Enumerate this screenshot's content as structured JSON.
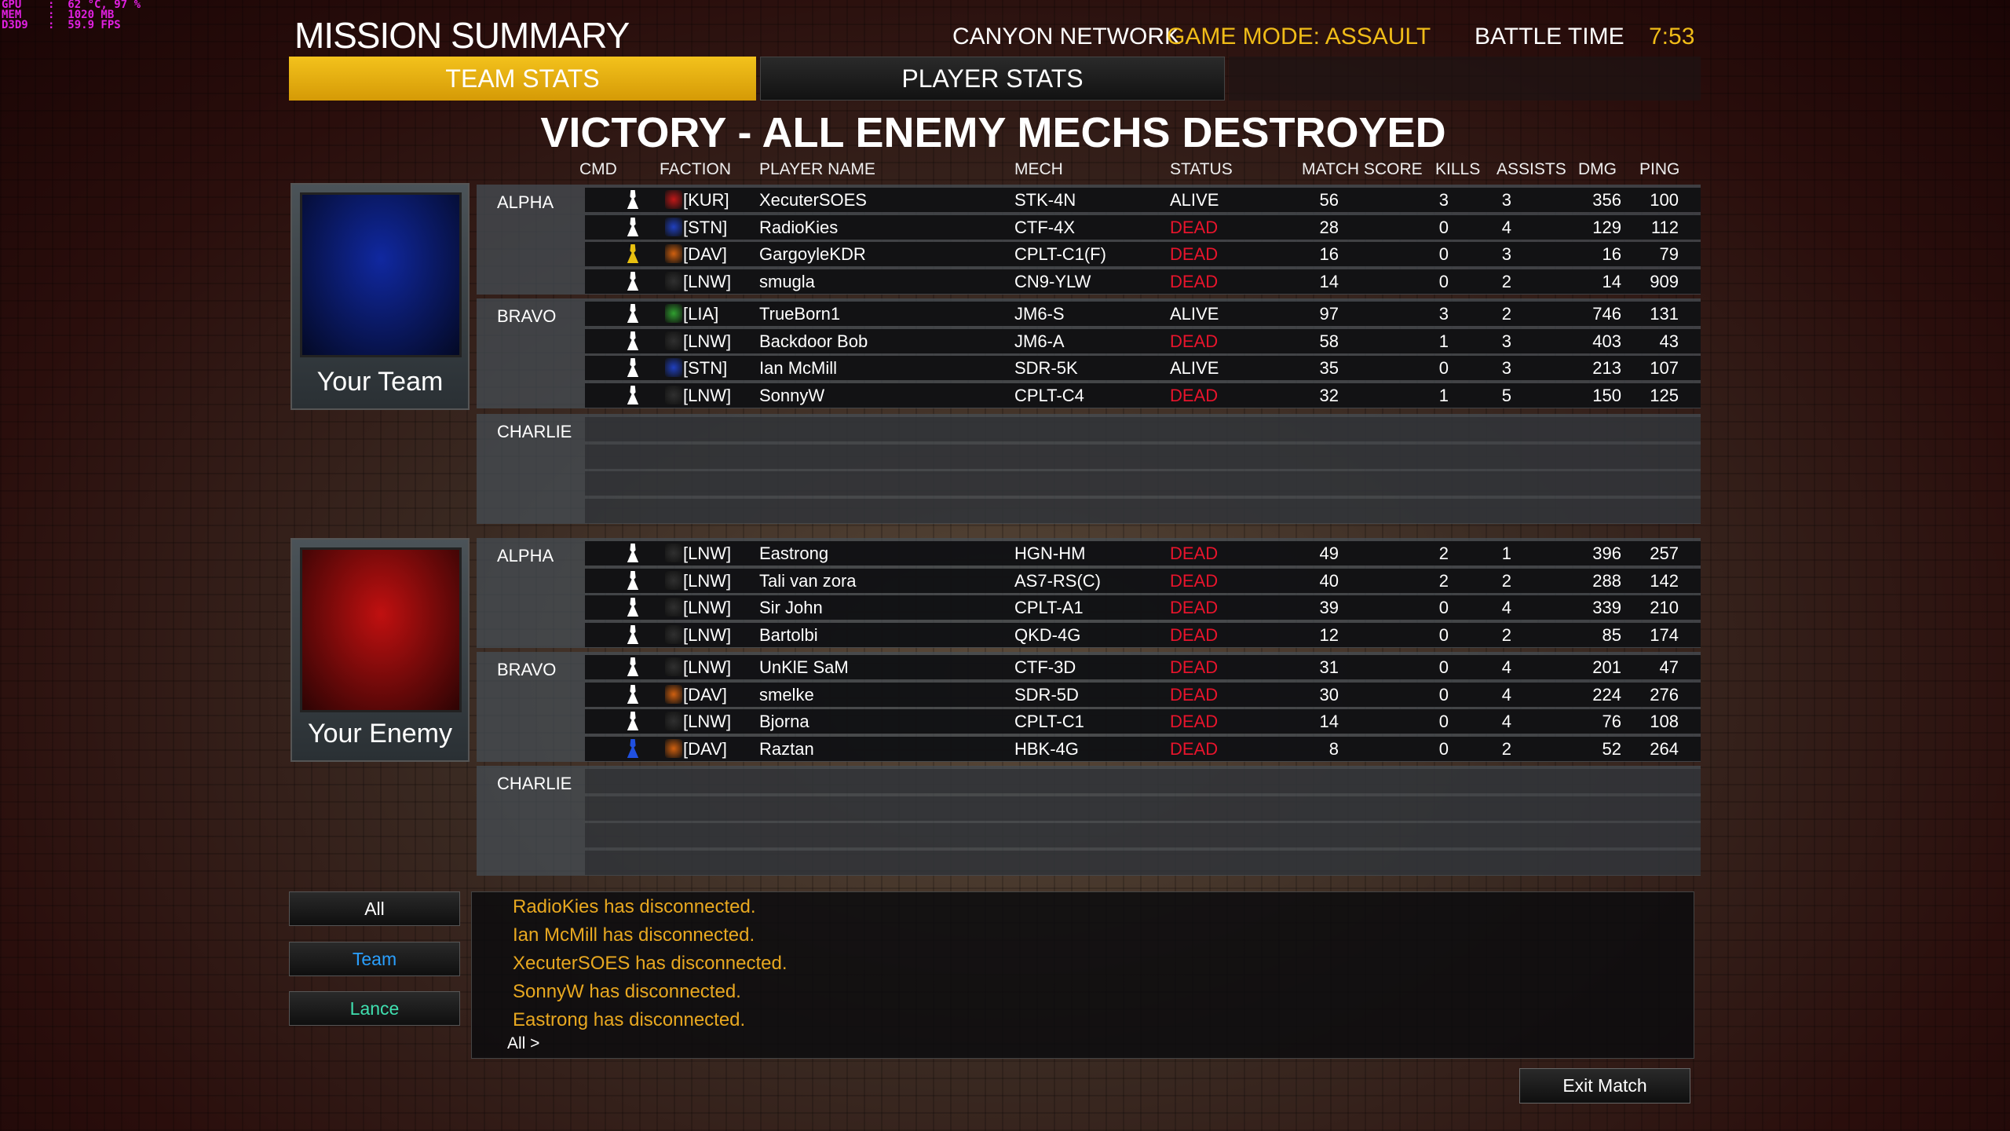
{
  "perf_overlay": [
    "GPU    :  62 °C, 97 %",
    "MEM    :  1020 MB",
    "D3D9   :  59.9 FPS"
  ],
  "header": {
    "title": "MISSION SUMMARY",
    "map": "CANYON NETWORK",
    "game_mode": "GAME MODE: ASSAULT",
    "battle_time_label": "BATTLE TIME",
    "battle_time": "7:53"
  },
  "tabs": {
    "team_stats": "TEAM STATS",
    "player_stats": "PLAYER STATS"
  },
  "result": "VICTORY - ALL ENEMY MECHS DESTROYED",
  "columns": {
    "cmd": "CMD",
    "faction": "FACTION",
    "player": "PLAYER NAME",
    "mech": "MECH",
    "status": "STATUS",
    "score": "MATCH SCORE",
    "kills": "KILLS",
    "assists": "ASSISTS",
    "dmg": "DMG",
    "ping": "PING"
  },
  "colors": {
    "accent": "#f0bc18",
    "dead": "#e8142c",
    "chat": "#e8a820",
    "your_team": "#1028a0",
    "enemy": "#c01010"
  },
  "teams": [
    {
      "label": "Your Team",
      "flag_color": "#1028a0",
      "lances": [
        {
          "name": "ALPHA",
          "players": [
            {
              "cmd": "player-icon",
              "faction": "KUR",
              "tag": "[KUR]",
              "name": "XecuterSOES",
              "mech": "STK-4N",
              "status": "ALIVE",
              "score": "56",
              "kills": "3",
              "assists": "3",
              "dmg": "356",
              "ping": "100"
            },
            {
              "cmd": "player-icon",
              "faction": "STN",
              "tag": "[STN]",
              "name": "RadioKies",
              "mech": "CTF-4X",
              "status": "DEAD",
              "score": "28",
              "kills": "0",
              "assists": "4",
              "dmg": "129",
              "ping": "112"
            },
            {
              "cmd": "commander-icon",
              "faction": "DAV",
              "tag": "[DAV]",
              "name": "GargoyleKDR",
              "mech": "CPLT-C1(F)",
              "status": "DEAD",
              "score": "16",
              "kills": "0",
              "assists": "3",
              "dmg": "16",
              "ping": "79"
            },
            {
              "cmd": "player-icon",
              "faction": "LNW",
              "tag": "[LNW]",
              "name": "smugla",
              "mech": "CN9-YLW",
              "status": "DEAD",
              "score": "14",
              "kills": "0",
              "assists": "2",
              "dmg": "14",
              "ping": "909"
            }
          ]
        },
        {
          "name": "BRAVO",
          "players": [
            {
              "cmd": "player-icon",
              "faction": "LIA",
              "tag": "[LIA]",
              "name": "TrueBorn1",
              "mech": "JM6-S",
              "status": "ALIVE",
              "score": "97",
              "kills": "3",
              "assists": "2",
              "dmg": "746",
              "ping": "131"
            },
            {
              "cmd": "player-icon",
              "faction": "LNW",
              "tag": "[LNW]",
              "name": "Backdoor Bob",
              "mech": "JM6-A",
              "status": "DEAD",
              "score": "58",
              "kills": "1",
              "assists": "3",
              "dmg": "403",
              "ping": "43"
            },
            {
              "cmd": "player-icon",
              "faction": "STN",
              "tag": "[STN]",
              "name": "Ian McMill",
              "mech": "SDR-5K",
              "status": "ALIVE",
              "score": "35",
              "kills": "0",
              "assists": "3",
              "dmg": "213",
              "ping": "107"
            },
            {
              "cmd": "player-icon",
              "faction": "LNW",
              "tag": "[LNW]",
              "name": "SonnyW",
              "mech": "CPLT-C4",
              "status": "DEAD",
              "score": "32",
              "kills": "1",
              "assists": "5",
              "dmg": "150",
              "ping": "125"
            }
          ]
        },
        {
          "name": "CHARLIE",
          "players": []
        }
      ]
    },
    {
      "label": "Your Enemy",
      "flag_color": "#c01010",
      "lances": [
        {
          "name": "ALPHA",
          "players": [
            {
              "cmd": "player-icon",
              "faction": "LNW",
              "tag": "[LNW]",
              "name": "Eastrong",
              "mech": "HGN-HM",
              "status": "DEAD",
              "score": "49",
              "kills": "2",
              "assists": "1",
              "dmg": "396",
              "ping": "257"
            },
            {
              "cmd": "player-icon",
              "faction": "LNW",
              "tag": "[LNW]",
              "name": "Tali van zora",
              "mech": "AS7-RS(C)",
              "status": "DEAD",
              "score": "40",
              "kills": "2",
              "assists": "2",
              "dmg": "288",
              "ping": "142"
            },
            {
              "cmd": "player-icon",
              "faction": "LNW",
              "tag": "[LNW]",
              "name": "Sir John",
              "mech": "CPLT-A1",
              "status": "DEAD",
              "score": "39",
              "kills": "0",
              "assists": "4",
              "dmg": "339",
              "ping": "210"
            },
            {
              "cmd": "player-icon",
              "faction": "LNW",
              "tag": "[LNW]",
              "name": "Bartolbi",
              "mech": "QKD-4G",
              "status": "DEAD",
              "score": "12",
              "kills": "0",
              "assists": "2",
              "dmg": "85",
              "ping": "174"
            }
          ]
        },
        {
          "name": "BRAVO",
          "players": [
            {
              "cmd": "player-icon",
              "faction": "LNW",
              "tag": "[LNW]",
              "name": "UnKlE SaM",
              "mech": "CTF-3D",
              "status": "DEAD",
              "score": "31",
              "kills": "0",
              "assists": "4",
              "dmg": "201",
              "ping": "47"
            },
            {
              "cmd": "player-icon",
              "faction": "DAV",
              "tag": "[DAV]",
              "name": "smelke",
              "mech": "SDR-5D",
              "status": "DEAD",
              "score": "30",
              "kills": "0",
              "assists": "4",
              "dmg": "224",
              "ping": "276"
            },
            {
              "cmd": "player-icon",
              "faction": "LNW",
              "tag": "[LNW]",
              "name": "Bjorna",
              "mech": "CPLT-C1",
              "status": "DEAD",
              "score": "14",
              "kills": "0",
              "assists": "4",
              "dmg": "76",
              "ping": "108"
            },
            {
              "cmd": "commander-blue-icon",
              "faction": "DAV",
              "tag": "[DAV]",
              "name": "Raztan",
              "mech": "HBK-4G",
              "status": "DEAD",
              "score": "8",
              "kills": "0",
              "assists": "2",
              "dmg": "52",
              "ping": "264"
            }
          ]
        },
        {
          "name": "CHARLIE",
          "players": []
        }
      ]
    }
  ],
  "faction_colors": {
    "KUR": "#c01818",
    "STN": "#2040c0",
    "DAV": "#d06010",
    "LNW": "#303030",
    "LIA": "#30a030"
  },
  "chat": {
    "filters": [
      "All",
      "Team",
      "Lance"
    ],
    "filter_colors": [
      "#ffffff",
      "#2aa0ff",
      "#40e0b0"
    ],
    "messages": [
      "RadioKies has disconnected.",
      "Ian McMill has disconnected.",
      "XecuterSOES has disconnected.",
      "SonnyW has disconnected.",
      "Eastrong has disconnected."
    ],
    "prompt": "All >"
  },
  "exit_button": "Exit Match"
}
